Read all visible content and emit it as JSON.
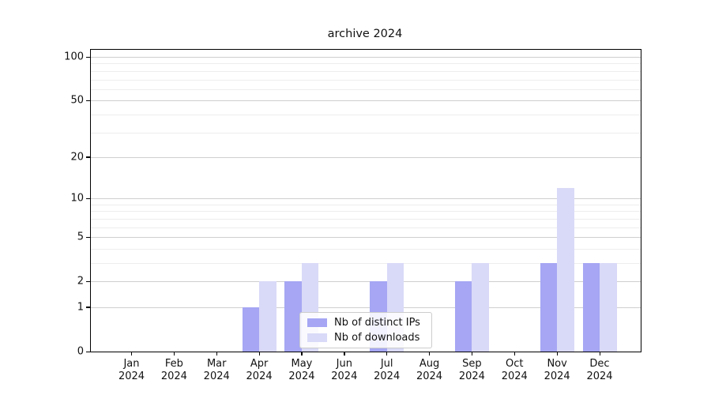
{
  "chart_data": {
    "type": "bar",
    "title": "archive 2024",
    "categories": [
      "Jan",
      "Feb",
      "Mar",
      "Apr",
      "May",
      "Jun",
      "Jul",
      "Aug",
      "Sep",
      "Oct",
      "Nov",
      "Dec"
    ],
    "x_tick_year": "2024",
    "series": [
      {
        "name": "Nb of distinct IPs",
        "color": "#a6a6f4",
        "values": [
          0,
          0,
          0,
          1,
          2,
          0,
          2,
          0,
          2,
          0,
          3,
          3
        ]
      },
      {
        "name": "Nb of downloads",
        "color": "#d9d9f8",
        "values": [
          0,
          0,
          0,
          2,
          3,
          0,
          3,
          0,
          3,
          0,
          12,
          3
        ]
      }
    ],
    "y_ticks": [
      0,
      1,
      2,
      5,
      10,
      20,
      50,
      100
    ],
    "y_minor_gridlines": [
      3,
      4,
      6,
      7,
      8,
      9,
      30,
      40,
      60,
      70,
      80,
      90
    ],
    "scale": "log1p",
    "ylim": [
      0,
      112
    ],
    "grid": "horizontal",
    "legend_position": "lower center",
    "colors": {
      "major_grid": "#cfcfcf",
      "minor_grid": "#ededed",
      "axis": "#000000",
      "text": "#111111",
      "background": "#ffffff",
      "legend_border": "#cccccc"
    }
  }
}
